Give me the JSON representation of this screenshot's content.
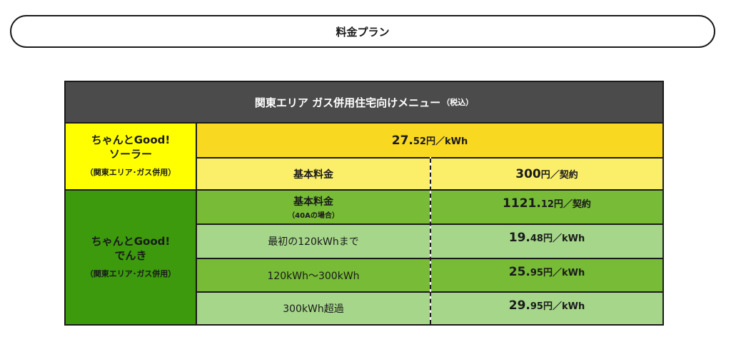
{
  "pill": {
    "label": "料金プラン"
  },
  "table": {
    "header": {
      "title": "関東エリア ガス併用住宅向けメニュー",
      "title_small": "（税込）"
    },
    "solar": {
      "name_line1": "ちゃんとGood!",
      "name_line2": "ソーラー",
      "area": "（関東エリア･ガス併用）",
      "rate": {
        "int": "27.",
        "dec": "52",
        "unit": "円／kWh"
      },
      "basic_label": "基本料金",
      "basic": {
        "int": "300",
        "unit": "円／契約"
      }
    },
    "denki": {
      "name_line1": "ちゃんとGood!",
      "name_line2": "でんき",
      "area": "（関東エリア･ガス併用）",
      "rows": [
        {
          "label": "基本料金",
          "note": "（40Aの場合）",
          "int": "1121.",
          "dec": "12",
          "unit": "円／契約"
        },
        {
          "label": "最初の120kWhまで",
          "int": "19.",
          "dec": "48",
          "unit": "円／kWh"
        },
        {
          "label": "120kWh〜300kWh",
          "int": "25.",
          "dec": "95",
          "unit": "円／kWh"
        },
        {
          "label": "300kWh超過",
          "int": "29.",
          "dec": "95",
          "unit": "円／kWh"
        }
      ]
    }
  },
  "colors": {
    "header_bg": "#4b4b4b",
    "solar_name_bg": "#ffff00",
    "solar_rate_bg": "#f8d820",
    "solar_basic_bg": "#fbef6a",
    "denki_name_bg": "#3c9a0c",
    "denki_dark_row": "#77bb37",
    "denki_light_row": "#a6d68a"
  }
}
